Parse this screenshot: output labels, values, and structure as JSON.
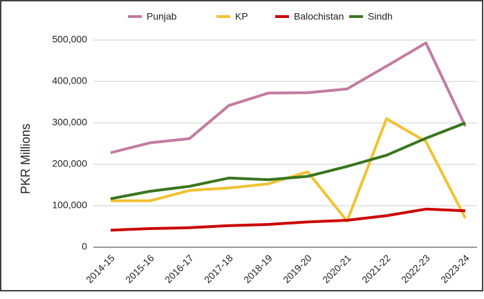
{
  "chart_data": {
    "type": "line",
    "y_label": "PKR Millions",
    "categories": [
      "2014-15",
      "2015-16",
      "2016-17",
      "2017-18",
      "2018-19",
      "2019-20",
      "2020-21",
      "2021-22",
      "2022-23",
      "2023-24"
    ],
    "series": [
      {
        "name": "Punjab",
        "color": "#c27ba0",
        "values": [
          228000,
          252000,
          262000,
          342000,
          372000,
          373000,
          382000,
          437000,
          493000,
          292000
        ]
      },
      {
        "name": "KP",
        "color": "#f1c232",
        "values": [
          112000,
          112000,
          137000,
          143000,
          153000,
          182000,
          63000,
          310000,
          255000,
          70000
        ]
      },
      {
        "name": "Balochistan",
        "color": "#cc0000",
        "values": [
          41000,
          45000,
          47000,
          52000,
          55000,
          61000,
          65000,
          76000,
          92000,
          88000
        ]
      },
      {
        "name": "Sindh",
        "color": "#38761d",
        "values": [
          117000,
          135000,
          147000,
          167000,
          163000,
          171000,
          195000,
          222000,
          263000,
          300000
        ]
      }
    ],
    "ylim": [
      0,
      500000
    ],
    "yticks": [
      0,
      {
        "value": 100000,
        "label": "100,000"
      },
      {
        "value": 200000,
        "label": "200,000"
      },
      {
        "value": 300000,
        "label": "300,000"
      },
      {
        "value": 400000,
        "label": "400,000"
      },
      {
        "value": 500000,
        "label": "500,000"
      }
    ],
    "grid": true
  }
}
